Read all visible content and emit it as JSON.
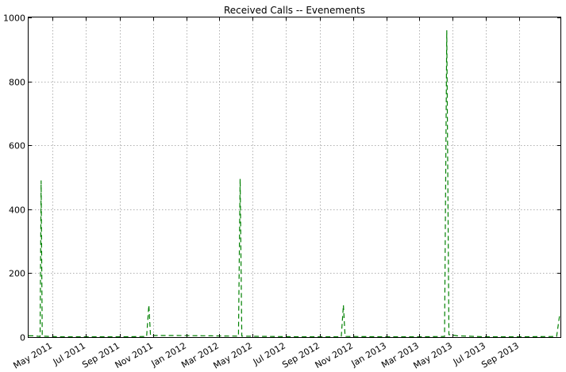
{
  "chart_data": {
    "type": "line",
    "title": "Received Calls -- Evenements",
    "xlabel": "",
    "ylabel": "",
    "x_axis": "date",
    "xlim": [
      "2011-03-18",
      "2013-11-15"
    ],
    "ylim": [
      0,
      1000
    ],
    "grid": true,
    "x_tick_labels": [
      {
        "date": "2011-05-01",
        "label": "May 2011"
      },
      {
        "date": "2011-07-01",
        "label": "Jul 2011"
      },
      {
        "date": "2011-09-01",
        "label": "Sep 2011"
      },
      {
        "date": "2011-11-01",
        "label": "Nov 2011"
      },
      {
        "date": "2012-01-01",
        "label": "Jan 2012"
      },
      {
        "date": "2012-03-01",
        "label": "Mar 2012"
      },
      {
        "date": "2012-05-01",
        "label": "May 2012"
      },
      {
        "date": "2012-07-01",
        "label": "Jul 2012"
      },
      {
        "date": "2012-09-01",
        "label": "Sep 2012"
      },
      {
        "date": "2012-11-01",
        "label": "Nov 2012"
      },
      {
        "date": "2013-01-01",
        "label": "Jan 2013"
      },
      {
        "date": "2013-03-01",
        "label": "Mar 2013"
      },
      {
        "date": "2013-05-01",
        "label": "May 2013"
      },
      {
        "date": "2013-07-01",
        "label": "Jul 2013"
      },
      {
        "date": "2013-09-01",
        "label": "Sep 2013"
      }
    ],
    "y_ticks": [
      0,
      200,
      400,
      600,
      800,
      1000
    ],
    "series": [
      {
        "color": "#008000",
        "style": "dashed",
        "points": [
          {
            "x": "2011-03-18",
            "y": 4
          },
          {
            "x": "2011-03-28",
            "y": 4
          },
          {
            "x": "2011-04-08",
            "y": 2
          },
          {
            "x": "2011-04-10",
            "y": 490
          },
          {
            "x": "2011-04-12",
            "y": 3
          },
          {
            "x": "2011-05-15",
            "y": 1
          },
          {
            "x": "2011-07-01",
            "y": 1
          },
          {
            "x": "2011-09-01",
            "y": 1
          },
          {
            "x": "2011-10-20",
            "y": 2
          },
          {
            "x": "2011-10-24",
            "y": 100
          },
          {
            "x": "2011-10-27",
            "y": 5
          },
          {
            "x": "2011-12-15",
            "y": 5
          },
          {
            "x": "2012-02-15",
            "y": 4
          },
          {
            "x": "2012-04-05",
            "y": 3
          },
          {
            "x": "2012-04-08",
            "y": 495
          },
          {
            "x": "2012-04-11",
            "y": 3
          },
          {
            "x": "2012-06-01",
            "y": 2
          },
          {
            "x": "2012-08-01",
            "y": 1
          },
          {
            "x": "2012-10-10",
            "y": 1
          },
          {
            "x": "2012-10-14",
            "y": 100
          },
          {
            "x": "2012-10-17",
            "y": 2
          },
          {
            "x": "2013-01-01",
            "y": 1
          },
          {
            "x": "2013-03-01",
            "y": 1
          },
          {
            "x": "2013-04-17",
            "y": 2
          },
          {
            "x": "2013-04-21",
            "y": 960
          },
          {
            "x": "2013-04-25",
            "y": 8
          },
          {
            "x": "2013-05-10",
            "y": 4
          },
          {
            "x": "2013-07-01",
            "y": 1
          },
          {
            "x": "2013-09-01",
            "y": 1
          },
          {
            "x": "2013-11-08",
            "y": 2
          },
          {
            "x": "2013-11-14",
            "y": 75
          }
        ]
      }
    ]
  }
}
